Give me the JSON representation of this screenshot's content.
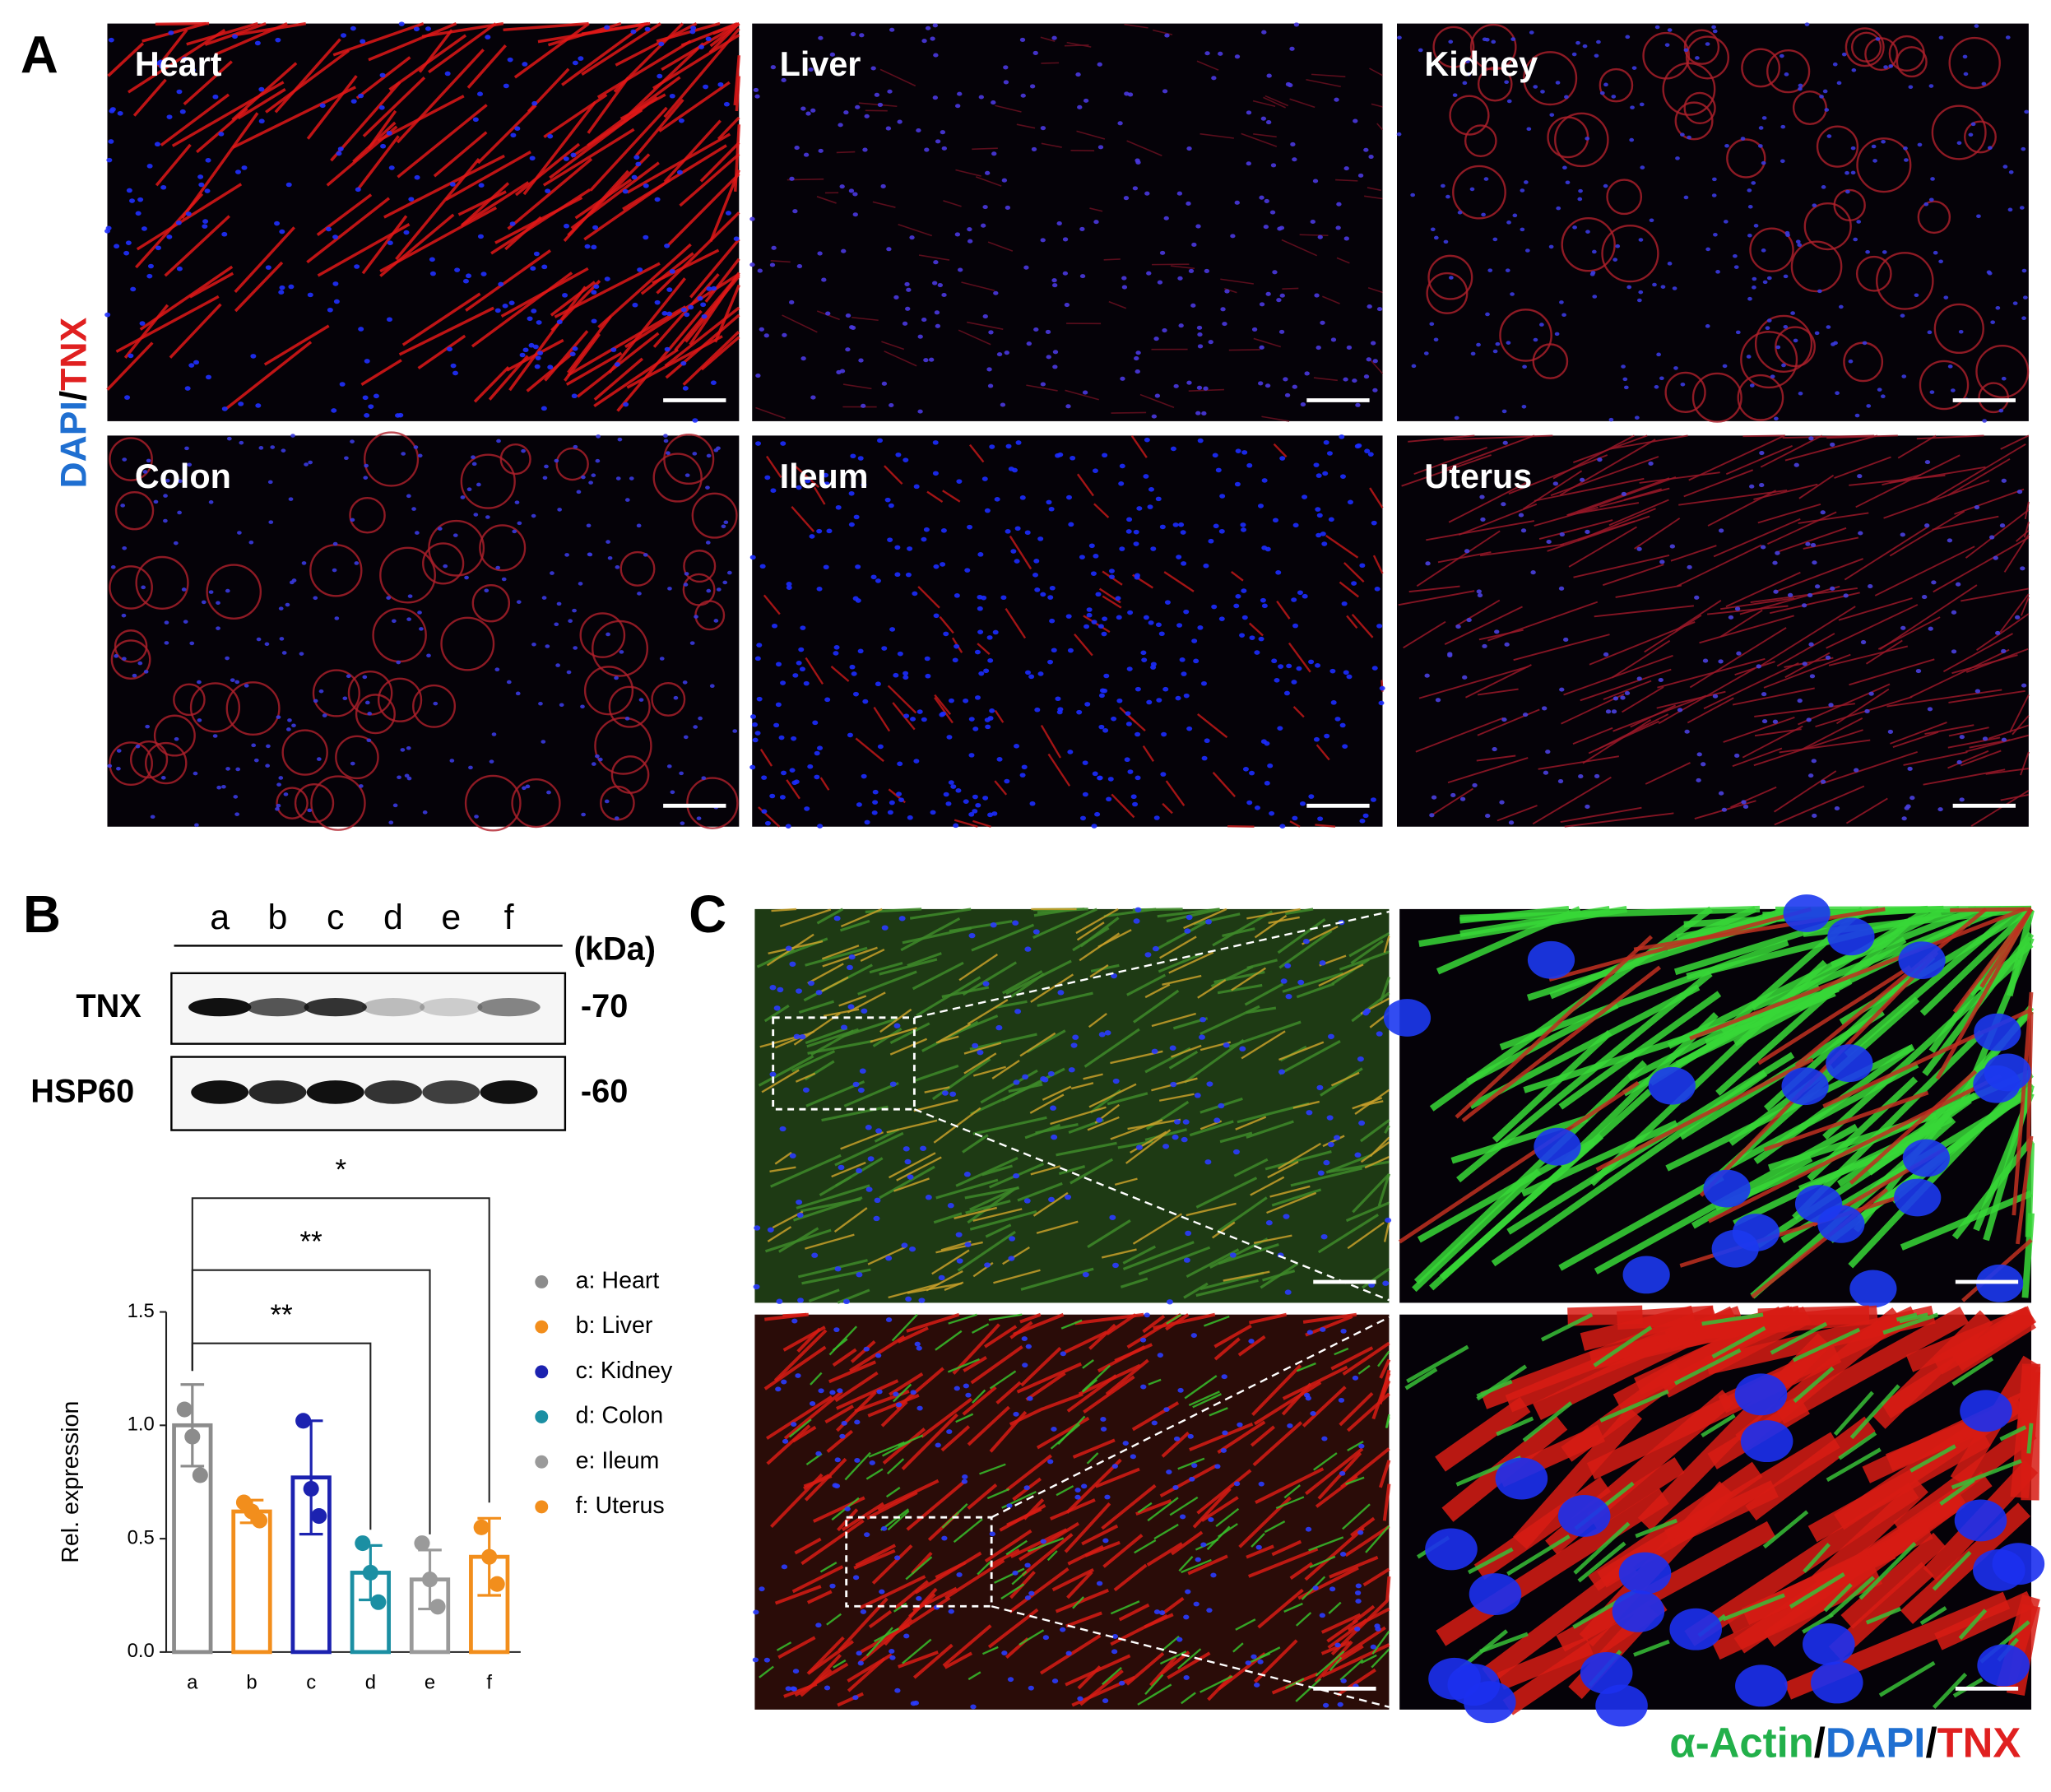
{
  "panel_labels": [
    "A",
    "B",
    "C"
  ],
  "panel_a": {
    "stain_label": [
      {
        "text": "DAPI",
        "color": "#1f6fd1"
      },
      {
        "text": "/",
        "color": "#000000"
      },
      {
        "text": "TNX",
        "color": "#e02020"
      }
    ],
    "tissues": [
      "Heart",
      "Liver",
      "Kidney",
      "Colon",
      "Ileum",
      "Uterus"
    ]
  },
  "western_blot": {
    "lanes": [
      "a",
      "b",
      "c",
      "d",
      "e",
      "f"
    ],
    "unit": "(kDa)",
    "rows": [
      {
        "name": "TNX",
        "marker": "-70"
      },
      {
        "name": "HSP60",
        "marker": "-60"
      }
    ]
  },
  "chart_data": {
    "type": "bar",
    "ylabel": "Rel. expression",
    "categories": [
      "a",
      "b",
      "c",
      "d",
      "e",
      "f"
    ],
    "values": [
      1.0,
      0.62,
      0.77,
      0.35,
      0.32,
      0.42
    ],
    "errors": [
      0.18,
      0.05,
      0.25,
      0.12,
      0.13,
      0.17
    ],
    "points": [
      [
        1.07,
        0.95,
        0.78
      ],
      [
        0.66,
        0.62,
        0.58
      ],
      [
        1.02,
        0.72,
        0.6
      ],
      [
        0.48,
        0.35,
        0.22
      ],
      [
        0.48,
        0.32,
        0.2
      ],
      [
        0.55,
        0.42,
        0.3
      ]
    ],
    "colors": [
      "#8c8c8c",
      "#f28e1c",
      "#1c22b0",
      "#1b8fa3",
      "#9a9a9a",
      "#f28e1c"
    ],
    "ylim": [
      0,
      1.5
    ],
    "yticks": [
      {
        "value": 0,
        "label": "0.0"
      },
      0.5,
      {
        "value": 1,
        "label": "1.0"
      },
      1.5
    ],
    "annotations": [
      {
        "from": "a",
        "to": "d",
        "label": "**"
      },
      {
        "from": "a",
        "to": "e",
        "label": "**"
      },
      {
        "from": "a",
        "to": "f",
        "label": "*"
      }
    ],
    "legend": [
      {
        "label": "a: Heart",
        "color": "#8c8c8c"
      },
      {
        "label": "b: Liver",
        "color": "#f28e1c"
      },
      {
        "label": "c: Kidney",
        "color": "#1c22b0"
      },
      {
        "label": "d: Colon",
        "color": "#1b8fa3"
      },
      {
        "label": "e: Ileum",
        "color": "#9a9a9a"
      },
      {
        "label": "f: Uterus",
        "color": "#f28e1c"
      }
    ]
  },
  "panel_c": {
    "stain_label": [
      {
        "text": "α-Actin",
        "color": "#22b04a"
      },
      {
        "text": "/",
        "color": "#000000"
      },
      {
        "text": "DAPI",
        "color": "#1f6fd1"
      },
      {
        "text": "/",
        "color": "#000000"
      },
      {
        "text": "TNX",
        "color": "#e02020"
      }
    ]
  }
}
